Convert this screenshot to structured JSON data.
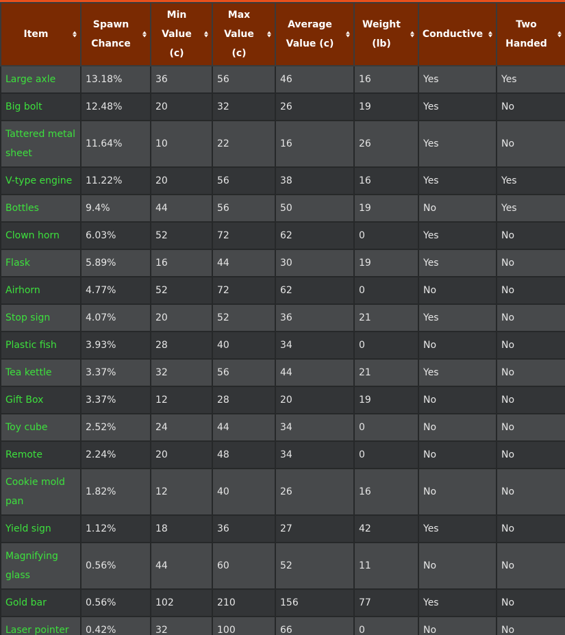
{
  "table": {
    "columns": [
      [
        "Item"
      ],
      [
        "Spawn",
        "Chance"
      ],
      [
        "Min",
        "Value",
        "(c)"
      ],
      [
        "Max",
        "Value",
        "(c)"
      ],
      [
        "Average",
        "Value (c)"
      ],
      [
        "Weight",
        "(lb)"
      ],
      [
        "Conductive"
      ],
      [
        "Two",
        "Handed"
      ]
    ],
    "rows": [
      [
        "Large axle",
        "13.18%",
        "36",
        "56",
        "46",
        "16",
        "Yes",
        "Yes"
      ],
      [
        "Big bolt",
        "12.48%",
        "20",
        "32",
        "26",
        "19",
        "Yes",
        "No"
      ],
      [
        "Tattered metal sheet",
        "11.64%",
        "10",
        "22",
        "16",
        "26",
        "Yes",
        "No"
      ],
      [
        "V-type engine",
        "11.22%",
        "20",
        "56",
        "38",
        "16",
        "Yes",
        "Yes"
      ],
      [
        "Bottles",
        "9.4%",
        "44",
        "56",
        "50",
        "19",
        "No",
        "Yes"
      ],
      [
        "Clown horn",
        "6.03%",
        "52",
        "72",
        "62",
        "0",
        "Yes",
        "No"
      ],
      [
        "Flask",
        "5.89%",
        "16",
        "44",
        "30",
        "19",
        "Yes",
        "No"
      ],
      [
        "Airhorn",
        "4.77%",
        "52",
        "72",
        "62",
        "0",
        "No",
        "No"
      ],
      [
        "Stop sign",
        "4.07%",
        "20",
        "52",
        "36",
        "21",
        "Yes",
        "No"
      ],
      [
        "Plastic fish",
        "3.93%",
        "28",
        "40",
        "34",
        "0",
        "No",
        "No"
      ],
      [
        "Tea kettle",
        "3.37%",
        "32",
        "56",
        "44",
        "21",
        "Yes",
        "No"
      ],
      [
        "Gift Box",
        "3.37%",
        "12",
        "28",
        "20",
        "19",
        "No",
        "No"
      ],
      [
        "Toy cube",
        "2.52%",
        "24",
        "44",
        "34",
        "0",
        "No",
        "No"
      ],
      [
        "Remote",
        "2.24%",
        "20",
        "48",
        "34",
        "0",
        "No",
        "No"
      ],
      [
        "Cookie mold pan",
        "1.82%",
        "12",
        "40",
        "26",
        "16",
        "No",
        "No"
      ],
      [
        "Yield sign",
        "1.12%",
        "18",
        "36",
        "27",
        "42",
        "Yes",
        "No"
      ],
      [
        "Magnifying glass",
        "0.56%",
        "44",
        "60",
        "52",
        "11",
        "No",
        "No"
      ],
      [
        "Gold bar",
        "0.56%",
        "102",
        "210",
        "156",
        "77",
        "Yes",
        "No"
      ],
      [
        "Laser pointer",
        "0.42%",
        "32",
        "100",
        "66",
        "0",
        "No",
        "No"
      ]
    ],
    "tall_rows": [
      2,
      14,
      16
    ]
  },
  "colors": {
    "header_bg": "#7a2a02",
    "accent_bar": "#e8501c",
    "item_name": "#3de03d",
    "row_odd": "#47494b",
    "row_even": "#333537"
  },
  "icons": {
    "sort": "sort-arrows-icon"
  }
}
